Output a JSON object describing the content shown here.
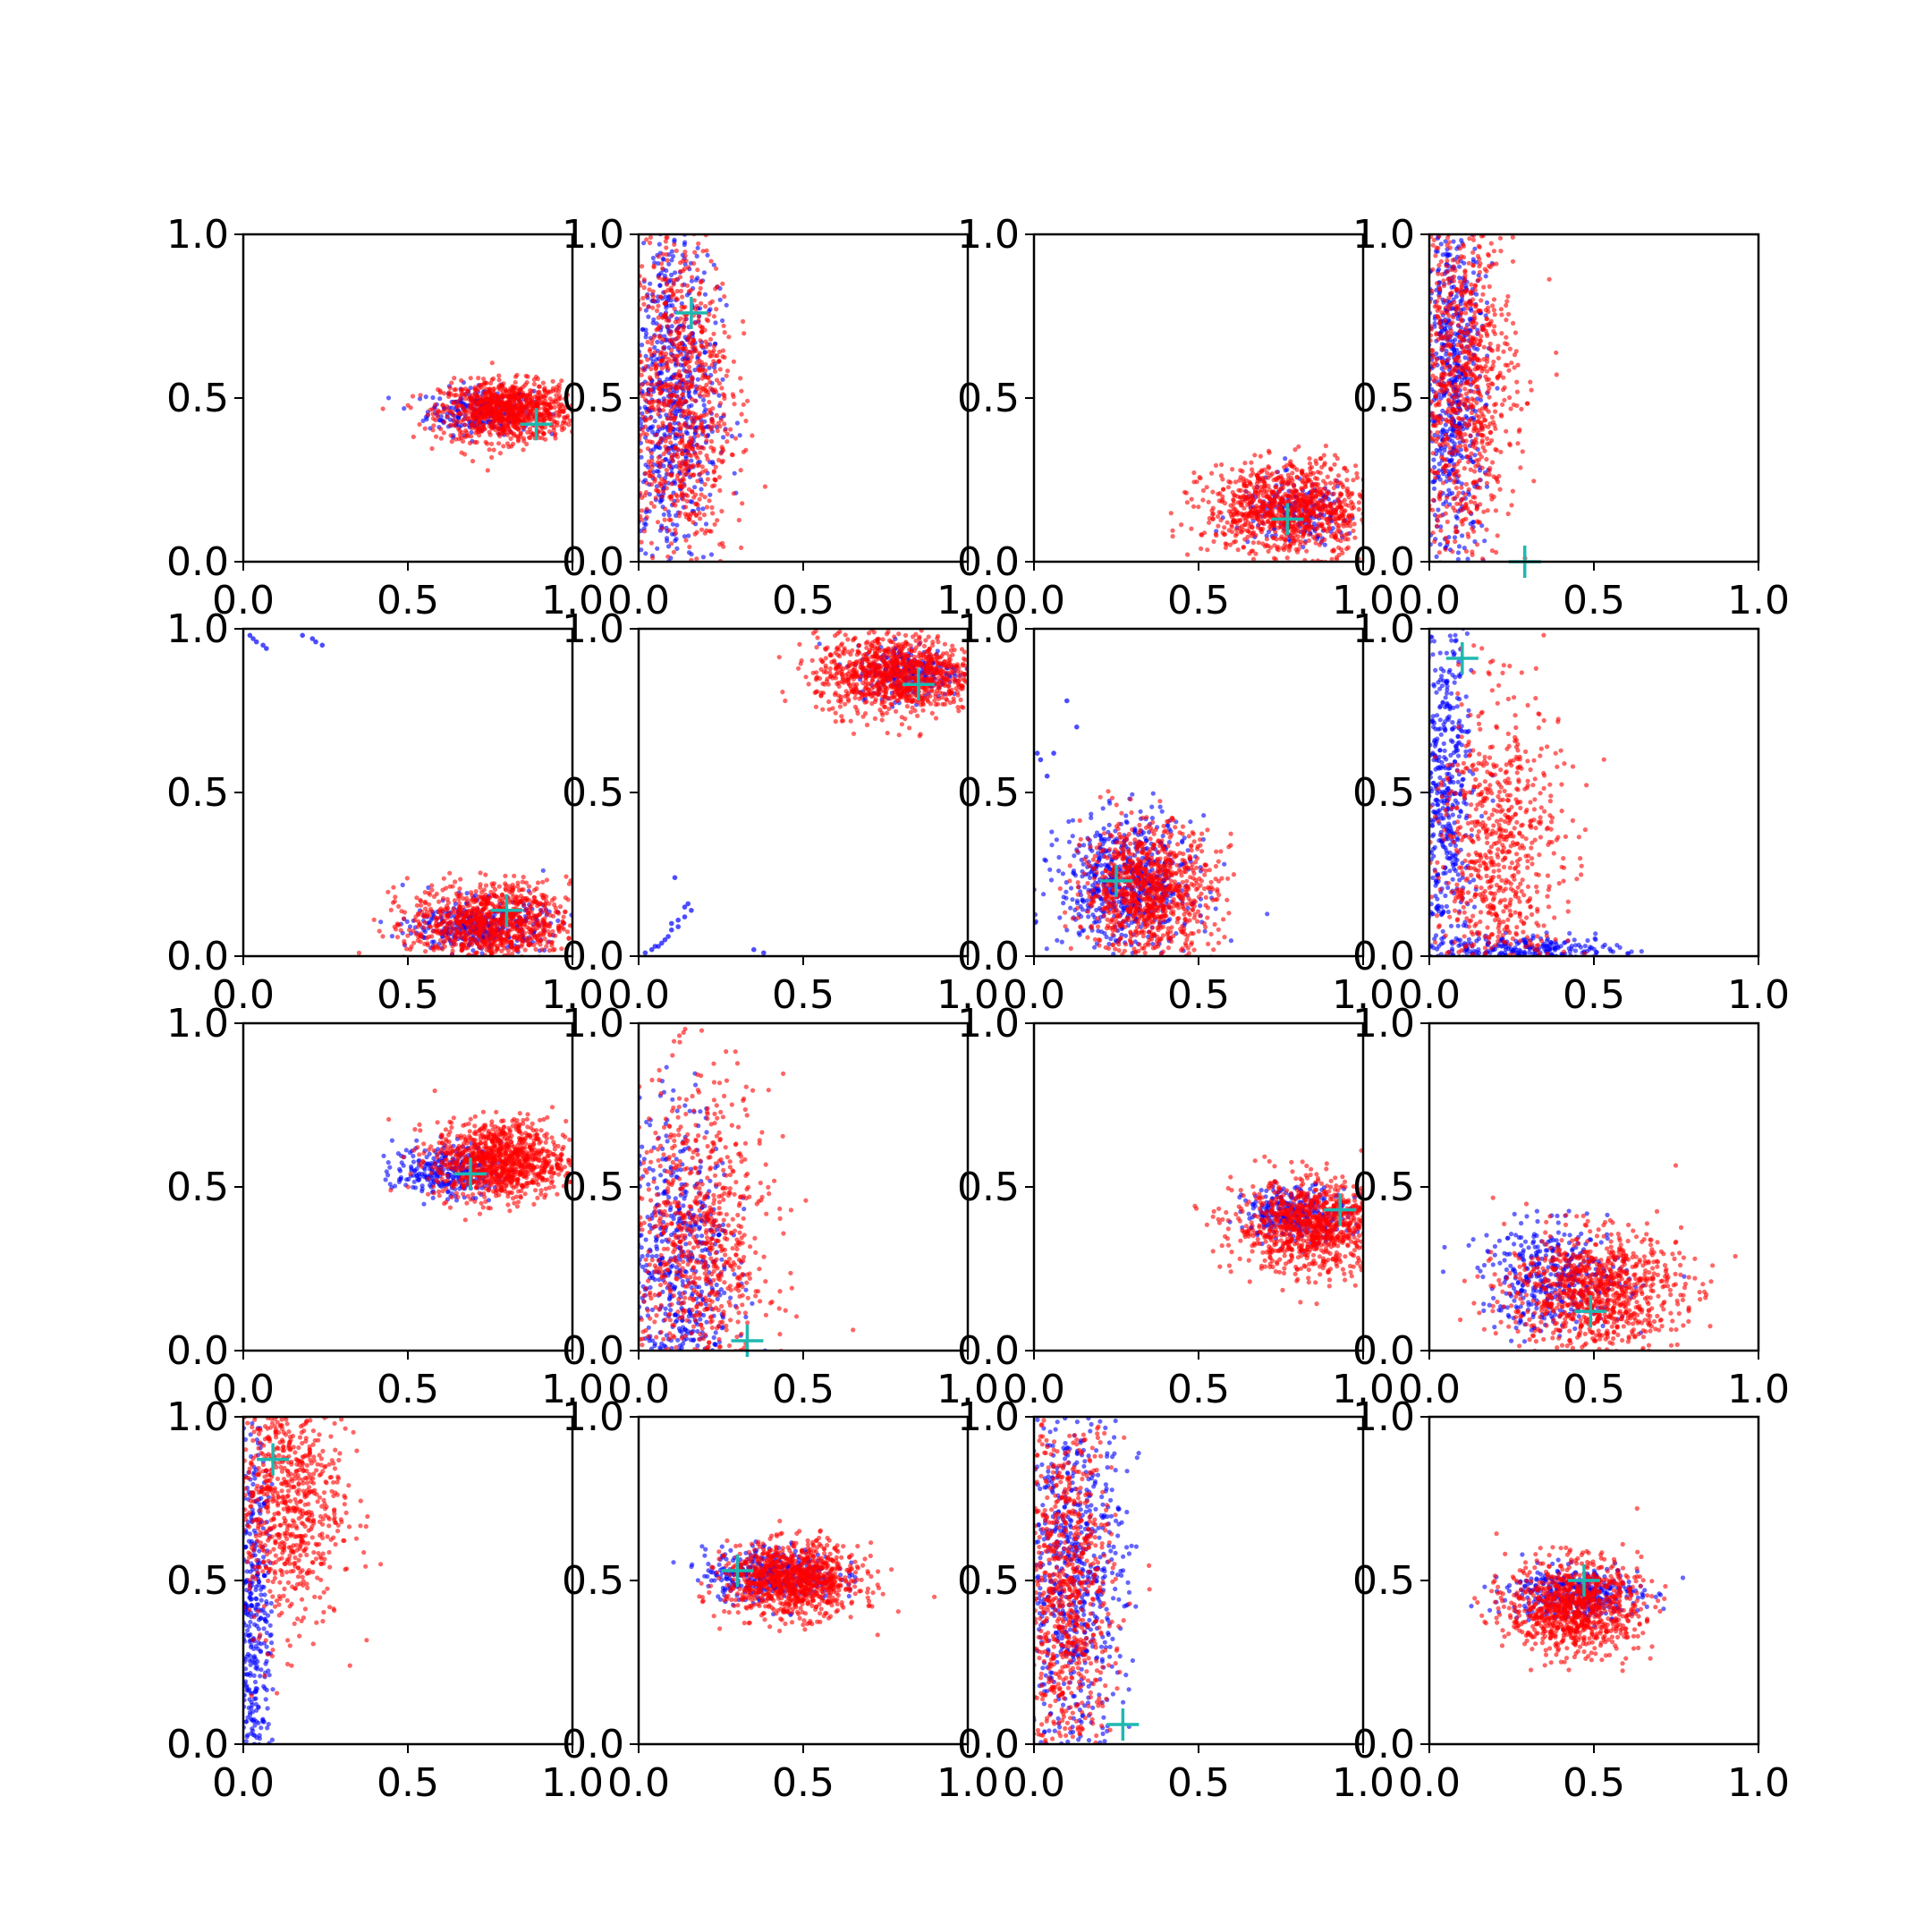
{
  "colors": {
    "series_a": "#0000ff",
    "series_b": "#ff0000",
    "marker": "#1fb8b0",
    "axis": "#000000",
    "background": "#ffffff"
  },
  "chart_data": [
    {
      "type": "scatter",
      "panel": 1,
      "xlim": [
        0,
        1
      ],
      "ylim": [
        0,
        1
      ],
      "xticks": [
        "0.0",
        "0.5",
        "1.0"
      ],
      "yticks": [
        "0.0",
        "0.5",
        "1.0"
      ],
      "series": [
        {
          "color": "#0000ff",
          "center": [
            0.72,
            0.46
          ],
          "spread": [
            0.08,
            0.035
          ],
          "count": 260
        },
        {
          "color": "#ff0000",
          "center": [
            0.8,
            0.46
          ],
          "spread": [
            0.1,
            0.045
          ],
          "count": 950
        }
      ],
      "marker": [
        0.89,
        0.42
      ]
    },
    {
      "type": "scatter",
      "panel": 2,
      "xlim": [
        0,
        1
      ],
      "ylim": [
        0,
        1
      ],
      "xticks": [
        "0.0",
        "0.5",
        "1.0"
      ],
      "yticks": [
        "0.0",
        "0.5",
        "1.0"
      ],
      "series": [
        {
          "color": "#0000ff",
          "center": [
            0.1,
            0.5
          ],
          "spread": [
            0.07,
            0.28
          ],
          "count": 700
        },
        {
          "color": "#ff0000",
          "center": [
            0.12,
            0.5
          ],
          "spread": [
            0.08,
            0.27
          ],
          "count": 900
        }
      ],
      "marker": [
        0.16,
        0.76
      ]
    },
    {
      "type": "scatter",
      "panel": 3,
      "xlim": [
        0,
        1
      ],
      "ylim": [
        0,
        1
      ],
      "xticks": [
        "0.0",
        "0.5",
        "1.0"
      ],
      "yticks": [
        "0.0",
        "0.5",
        "1.0"
      ],
      "series": [
        {
          "color": "#0000ff",
          "center": [
            0.8,
            0.15
          ],
          "spread": [
            0.09,
            0.05
          ],
          "count": 200
        },
        {
          "color": "#ff0000",
          "center": [
            0.78,
            0.16
          ],
          "spread": [
            0.13,
            0.07
          ],
          "count": 1000
        }
      ],
      "marker": [
        0.77,
        0.13
      ]
    },
    {
      "type": "scatter",
      "panel": 4,
      "xlim": [
        0,
        1
      ],
      "ylim": [
        0,
        1
      ],
      "xticks": [
        "0.0",
        "0.5",
        "1.0"
      ],
      "yticks": [
        "0.0",
        "0.5",
        "1.0"
      ],
      "series": [
        {
          "color": "#0000ff",
          "center": [
            0.07,
            0.55
          ],
          "spread": [
            0.05,
            0.27
          ],
          "count": 650
        },
        {
          "color": "#ff0000",
          "center": [
            0.1,
            0.55
          ],
          "spread": [
            0.08,
            0.26
          ],
          "count": 900
        }
      ],
      "marker": [
        0.29,
        0.0
      ]
    },
    {
      "type": "scatter",
      "panel": 5,
      "xlim": [
        0,
        1
      ],
      "ylim": [
        0,
        1
      ],
      "xticks": [
        "0.0",
        "0.5",
        "1.0"
      ],
      "yticks": [
        "0.0",
        "0.5",
        "1.0"
      ],
      "series": [
        {
          "color": "#0000ff",
          "center": [
            0.72,
            0.09
          ],
          "spread": [
            0.1,
            0.04
          ],
          "count": 380
        },
        {
          "color": "#ff0000",
          "center": [
            0.75,
            0.1
          ],
          "spread": [
            0.12,
            0.06
          ],
          "count": 950
        }
      ],
      "marker": [
        0.8,
        0.14
      ],
      "extra_points": [
        {
          "color": "#0000ff",
          "points": [
            [
              0.02,
              0.98
            ],
            [
              0.04,
              0.96
            ],
            [
              0.06,
              0.95
            ],
            [
              0.07,
              0.94
            ],
            [
              0.03,
              0.97
            ],
            [
              0.18,
              0.98
            ],
            [
              0.21,
              0.97
            ],
            [
              0.24,
              0.95
            ],
            [
              0.22,
              0.96
            ]
          ]
        }
      ]
    },
    {
      "type": "scatter",
      "panel": 6,
      "xlim": [
        0,
        1
      ],
      "ylim": [
        0,
        1
      ],
      "xticks": [
        "0.0",
        "0.5",
        "1.0"
      ],
      "yticks": [
        "0.0",
        "0.5",
        "1.0"
      ],
      "series": [
        {
          "color": "#0000ff",
          "center": [
            0.82,
            0.87
          ],
          "spread": [
            0.08,
            0.04
          ],
          "count": 250
        },
        {
          "color": "#ff0000",
          "center": [
            0.78,
            0.86
          ],
          "spread": [
            0.12,
            0.06
          ],
          "count": 1000
        }
      ],
      "marker": [
        0.85,
        0.83
      ],
      "extra_points": [
        {
          "color": "#0000ff",
          "points": [
            [
              0.02,
              0.01
            ],
            [
              0.04,
              0.02
            ],
            [
              0.06,
              0.03
            ],
            [
              0.08,
              0.05
            ],
            [
              0.09,
              0.06
            ],
            [
              0.1,
              0.08
            ],
            [
              0.12,
              0.09
            ],
            [
              0.1,
              0.1
            ],
            [
              0.14,
              0.12
            ],
            [
              0.12,
              0.11
            ],
            [
              0.15,
              0.16
            ],
            [
              0.14,
              0.15
            ],
            [
              0.16,
              0.14
            ],
            [
              0.11,
              0.24
            ],
            [
              0.35,
              0.02
            ],
            [
              0.38,
              0.01
            ],
            [
              0.07,
              0.04
            ],
            [
              0.05,
              0.03
            ]
          ]
        }
      ]
    },
    {
      "type": "scatter",
      "panel": 7,
      "xlim": [
        0,
        1
      ],
      "ylim": [
        0,
        1
      ],
      "xticks": [
        "0.0",
        "0.5",
        "1.0"
      ],
      "yticks": [
        "0.0",
        "0.5",
        "1.0"
      ],
      "series": [
        {
          "color": "#0000ff",
          "center": [
            0.28,
            0.22
          ],
          "spread": [
            0.1,
            0.1
          ],
          "count": 650
        },
        {
          "color": "#ff0000",
          "center": [
            0.35,
            0.2
          ],
          "spread": [
            0.1,
            0.1
          ],
          "count": 950
        }
      ],
      "marker": [
        0.25,
        0.23
      ],
      "extra_points": [
        {
          "color": "#0000ff",
          "points": [
            [
              0.02,
              0.6
            ],
            [
              0.04,
              0.55
            ],
            [
              0.1,
              0.78
            ],
            [
              0.13,
              0.7
            ],
            [
              0.06,
              0.62
            ],
            [
              0.01,
              0.62
            ]
          ]
        }
      ]
    },
    {
      "type": "scatter",
      "panel": 8,
      "xlim": [
        0,
        1
      ],
      "ylim": [
        0,
        1
      ],
      "xticks": [
        "0.0",
        "0.5",
        "1.0"
      ],
      "yticks": [
        "0.0",
        "0.5",
        "1.0"
      ],
      "series": [
        {
          "color": "#0000ff",
          "center": [
            0.05,
            0.45
          ],
          "spread": [
            0.04,
            0.3
          ],
          "count": 500
        },
        {
          "color": "#0000ff",
          "center": [
            0.3,
            0.02
          ],
          "spread": [
            0.14,
            0.02
          ],
          "count": 250
        },
        {
          "color": "#ff0000",
          "center": [
            0.2,
            0.3
          ],
          "spread": [
            0.1,
            0.25
          ],
          "count": 800
        }
      ],
      "marker": [
        0.1,
        0.91
      ]
    },
    {
      "type": "scatter",
      "panel": 9,
      "xlim": [
        0,
        1
      ],
      "ylim": [
        0,
        1
      ],
      "xticks": [
        "0.0",
        "0.5",
        "1.0"
      ],
      "yticks": [
        "0.0",
        "0.5",
        "1.0"
      ],
      "series": [
        {
          "color": "#0000ff",
          "center": [
            0.62,
            0.55
          ],
          "spread": [
            0.08,
            0.04
          ],
          "count": 300
        },
        {
          "color": "#ff0000",
          "center": [
            0.78,
            0.58
          ],
          "spread": [
            0.1,
            0.06
          ],
          "count": 1000
        }
      ],
      "marker": [
        0.69,
        0.54
      ]
    },
    {
      "type": "scatter",
      "panel": 10,
      "xlim": [
        0,
        1
      ],
      "ylim": [
        0,
        1
      ],
      "xticks": [
        "0.0",
        "0.5",
        "1.0"
      ],
      "yticks": [
        "0.0",
        "0.5",
        "1.0"
      ],
      "series": [
        {
          "color": "#0000ff",
          "center": [
            0.12,
            0.25
          ],
          "spread": [
            0.08,
            0.25
          ],
          "count": 600
        },
        {
          "color": "#ff0000",
          "center": [
            0.18,
            0.3
          ],
          "spread": [
            0.11,
            0.26
          ],
          "count": 850
        }
      ],
      "marker": [
        0.33,
        0.03
      ]
    },
    {
      "type": "scatter",
      "panel": 11,
      "xlim": [
        0,
        1
      ],
      "ylim": [
        0,
        1
      ],
      "xticks": [
        "0.0",
        "0.5",
        "1.0"
      ],
      "yticks": [
        "0.0",
        "0.5",
        "1.0"
      ],
      "series": [
        {
          "color": "#0000ff",
          "center": [
            0.8,
            0.42
          ],
          "spread": [
            0.08,
            0.04
          ],
          "count": 320
        },
        {
          "color": "#ff0000",
          "center": [
            0.85,
            0.38
          ],
          "spread": [
            0.12,
            0.07
          ],
          "count": 1000
        }
      ],
      "marker": [
        0.93,
        0.43
      ]
    },
    {
      "type": "scatter",
      "panel": 12,
      "xlim": [
        0,
        1
      ],
      "ylim": [
        0,
        1
      ],
      "xticks": [
        "0.0",
        "0.5",
        "1.0"
      ],
      "yticks": [
        "0.0",
        "0.5",
        "1.0"
      ],
      "series": [
        {
          "color": "#0000ff",
          "center": [
            0.38,
            0.22
          ],
          "spread": [
            0.11,
            0.08
          ],
          "count": 400
        },
        {
          "color": "#ff0000",
          "center": [
            0.5,
            0.18
          ],
          "spread": [
            0.13,
            0.09
          ],
          "count": 950
        }
      ],
      "marker": [
        0.49,
        0.12
      ]
    },
    {
      "type": "scatter",
      "panel": 13,
      "xlim": [
        0,
        1
      ],
      "ylim": [
        0,
        1
      ],
      "xticks": [
        "0.0",
        "0.5",
        "1.0"
      ],
      "yticks": [
        "0.0",
        "0.5",
        "1.0"
      ],
      "series": [
        {
          "color": "#0000ff",
          "center": [
            0.03,
            0.4
          ],
          "spread": [
            0.03,
            0.3
          ],
          "count": 450
        },
        {
          "color": "#ff0000",
          "center": [
            0.12,
            0.75
          ],
          "spread": [
            0.09,
            0.2
          ],
          "count": 850
        }
      ],
      "marker": [
        0.09,
        0.87
      ]
    },
    {
      "type": "scatter",
      "panel": 14,
      "xlim": [
        0,
        1
      ],
      "ylim": [
        0,
        1
      ],
      "xticks": [
        "0.0",
        "0.5",
        "1.0"
      ],
      "yticks": [
        "0.0",
        "0.5",
        "1.0"
      ],
      "series": [
        {
          "color": "#0000ff",
          "center": [
            0.4,
            0.52
          ],
          "spread": [
            0.1,
            0.04
          ],
          "count": 380
        },
        {
          "color": "#ff0000",
          "center": [
            0.47,
            0.5
          ],
          "spread": [
            0.1,
            0.055
          ],
          "count": 1000
        }
      ],
      "marker": [
        0.3,
        0.53
      ]
    },
    {
      "type": "scatter",
      "panel": 15,
      "xlim": [
        0,
        1
      ],
      "ylim": [
        0,
        1
      ],
      "xticks": [
        "0.0",
        "0.5",
        "1.0"
      ],
      "yticks": [
        "0.0",
        "0.5",
        "1.0"
      ],
      "series": [
        {
          "color": "#0000ff",
          "center": [
            0.12,
            0.5
          ],
          "spread": [
            0.08,
            0.28
          ],
          "count": 700
        },
        {
          "color": "#ff0000",
          "center": [
            0.1,
            0.45
          ],
          "spread": [
            0.07,
            0.28
          ],
          "count": 850
        }
      ],
      "marker": [
        0.27,
        0.06
      ]
    },
    {
      "type": "scatter",
      "panel": 16,
      "xlim": [
        0,
        1
      ],
      "ylim": [
        0,
        1
      ],
      "xticks": [
        "0.0",
        "0.5",
        "1.0"
      ],
      "yticks": [
        "0.0",
        "0.5",
        "1.0"
      ],
      "series": [
        {
          "color": "#0000ff",
          "center": [
            0.44,
            0.46
          ],
          "spread": [
            0.1,
            0.04
          ],
          "count": 400
        },
        {
          "color": "#ff0000",
          "center": [
            0.44,
            0.42
          ],
          "spread": [
            0.1,
            0.07
          ],
          "count": 950
        }
      ],
      "marker": [
        0.47,
        0.5
      ]
    }
  ]
}
